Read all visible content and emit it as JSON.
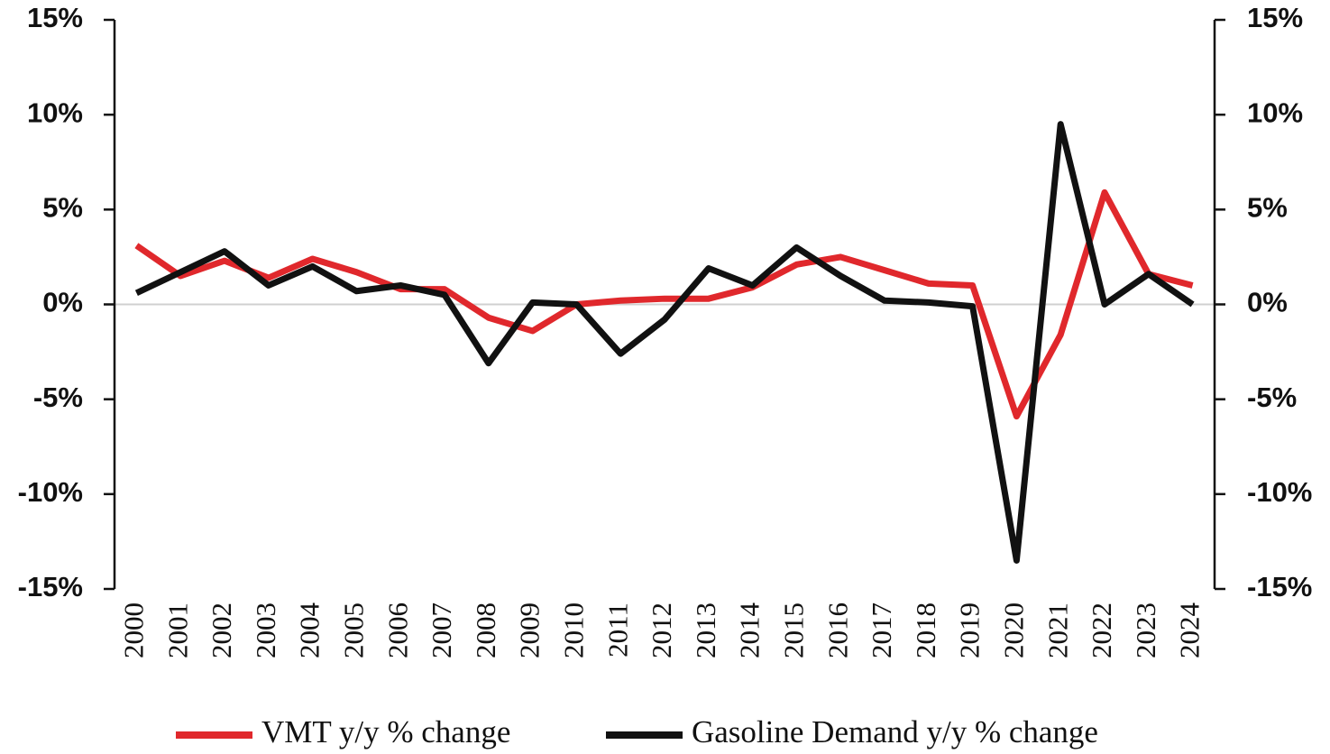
{
  "chart_data": {
    "type": "line",
    "categories": [
      "2000",
      "2001",
      "2002",
      "2003",
      "2004",
      "2005",
      "2006",
      "2007",
      "2008",
      "2009",
      "2010",
      "2011",
      "2012",
      "2013",
      "2014",
      "2015",
      "2016",
      "2017",
      "2018",
      "2019",
      "2020",
      "2021",
      "2022",
      "2023",
      "2024"
    ],
    "series": [
      {
        "name": "VMT y/y % change",
        "color": "#e0282c",
        "values": [
          3.1,
          1.5,
          2.3,
          1.4,
          2.4,
          1.7,
          0.8,
          0.8,
          -0.7,
          -1.4,
          0.0,
          0.2,
          0.3,
          0.3,
          0.9,
          2.1,
          2.5,
          1.8,
          1.1,
          1.0,
          -5.9,
          -1.6,
          5.9,
          1.6,
          1.0
        ]
      },
      {
        "name": "Gasoline Demand y/y % change",
        "color": "#111111",
        "axis": "y2",
        "values": [
          0.6,
          1.7,
          2.8,
          1.0,
          2.0,
          0.7,
          1.0,
          0.5,
          -3.1,
          0.1,
          0.0,
          -2.6,
          -0.8,
          1.9,
          1.0,
          3.0,
          1.5,
          0.2,
          0.1,
          -0.1,
          -13.5,
          9.5,
          0.0,
          1.6,
          0.0
        ]
      }
    ],
    "ylim": [
      -15,
      15
    ],
    "yticks": [
      {
        "value": 15,
        "label": "15%"
      },
      {
        "value": 10,
        "label": "10%"
      },
      {
        "value": 5,
        "label": "5%"
      },
      {
        "value": 0,
        "label": "0%"
      },
      {
        "value": -5,
        "label": "-5%"
      },
      {
        "value": -10,
        "label": "-10%"
      },
      {
        "value": -15,
        "label": "-15%"
      }
    ],
    "y2lim": [
      -15,
      15
    ],
    "y2ticks": [
      {
        "value": 15,
        "label": "15%"
      },
      {
        "value": 10,
        "label": "10%"
      },
      {
        "value": 5,
        "label": "5%"
      },
      {
        "value": 0,
        "label": "0%"
      },
      {
        "value": -5,
        "label": "-5%"
      },
      {
        "value": -10,
        "label": "-10%"
      },
      {
        "value": -15,
        "label": "-15%"
      }
    ],
    "zero_line": true,
    "legend": "bottom"
  }
}
